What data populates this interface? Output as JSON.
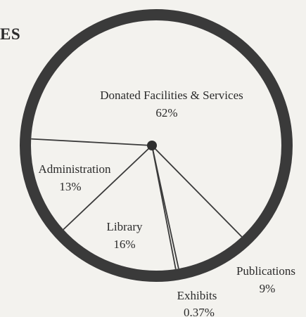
{
  "heading_fragment": "ES",
  "colors": {
    "background": "#f3f2ee",
    "ring": "#3a3a3a",
    "ink": "#2b2b2b"
  },
  "chart_data": {
    "type": "pie",
    "title": "",
    "legend": "none",
    "slices": [
      {
        "label": "Donated Facilities & Services",
        "value_label": "62%",
        "value": 62
      },
      {
        "label": "Administration",
        "value_label": "13%",
        "value": 13
      },
      {
        "label": "Library",
        "value_label": "16%",
        "value": 16
      },
      {
        "label": "Exhibits",
        "value_label": "0.37%",
        "value": 0.37
      },
      {
        "label": "Publications",
        "value_label": "9%",
        "value": 9
      }
    ]
  }
}
